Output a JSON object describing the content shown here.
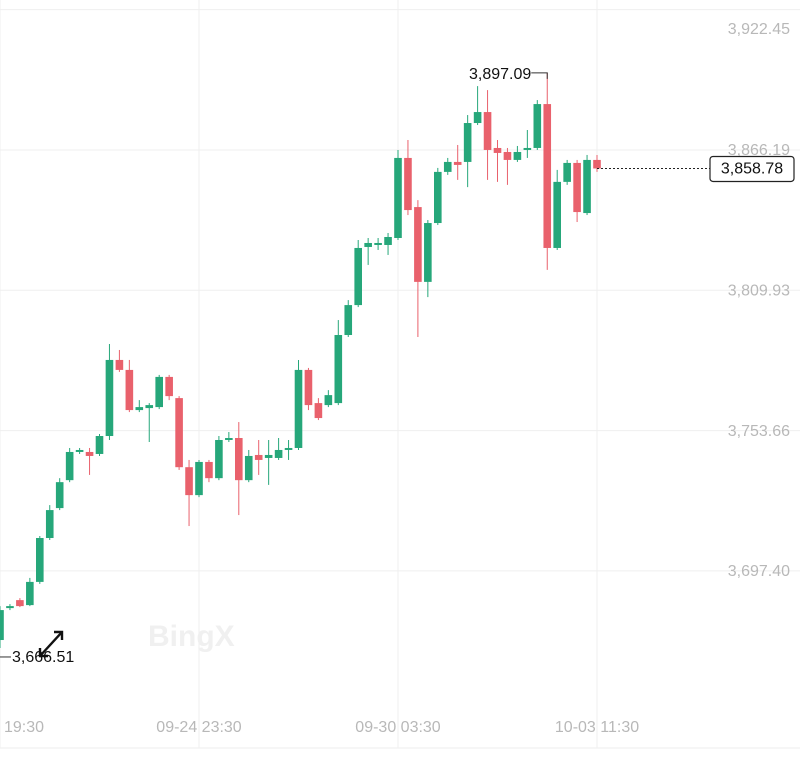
{
  "chart_data": {
    "type": "candlestick",
    "watermark": "BingX",
    "categories": [
      "19:30",
      null,
      null,
      null,
      null,
      null,
      null,
      null,
      null,
      null,
      null,
      null,
      null,
      null,
      null,
      null,
      null,
      null,
      null,
      null,
      "09-24 23:30",
      null,
      null,
      null,
      null,
      null,
      null,
      null,
      null,
      null,
      null,
      null,
      null,
      null,
      null,
      null,
      null,
      null,
      null,
      null,
      "09-30 03:30",
      null,
      null,
      null,
      null,
      null,
      null,
      null,
      null,
      null,
      null,
      null,
      null,
      null,
      null,
      null,
      null,
      null,
      null,
      null,
      "10-03 11:30"
    ],
    "open": [
      3669.7,
      3682.5,
      3685.7,
      3683.7,
      3693.0,
      3710.6,
      3722.6,
      3733.8,
      3745.1,
      3745.1,
      3744.3,
      3751.5,
      3782.0,
      3778.0,
      3761.9,
      3762.7,
      3763.1,
      3775.2,
      3766.7,
      3739.0,
      3727.8,
      3741.1,
      3734.6,
      3749.9,
      3750.7,
      3733.8,
      3743.9,
      3742.7,
      3742.7,
      3745.9,
      3746.7,
      3778.0,
      3764.7,
      3763.9,
      3764.7,
      3792.0,
      3804.0,
      3827.3,
      3828.1,
      3828.1,
      3830.9,
      3863.0,
      3843.3,
      3813.3,
      3836.9,
      3857.4,
      3861.4,
      3861.4,
      3877.0,
      3881.4,
      3867.0,
      3865.4,
      3862.2,
      3866.2,
      3867.0,
      3884.6,
      3826.9,
      3853.4,
      3861.0,
      3840.9,
      3862.2
    ],
    "high": [
      3683.3,
      3684.1,
      3686.5,
      3694.6,
      3711.4,
      3723.8,
      3734.6,
      3746.7,
      3746.7,
      3746.7,
      3752.3,
      3788.4,
      3786.0,
      3782.0,
      3765.9,
      3764.7,
      3776.0,
      3776.0,
      3767.5,
      3741.9,
      3741.9,
      3741.9,
      3751.5,
      3753.1,
      3757.1,
      3745.9,
      3749.9,
      3749.9,
      3750.7,
      3749.9,
      3782.0,
      3778.8,
      3766.7,
      3769.9,
      3798.0,
      3806.0,
      3830.1,
      3830.9,
      3830.9,
      3832.9,
      3866.2,
      3870.2,
      3846.1,
      3838.1,
      3859.0,
      3863.0,
      3868.2,
      3880.2,
      3891.8,
      3890.2,
      3870.2,
      3867.0,
      3867.8,
      3874.2,
      3886.2,
      3897.09,
      3858.2,
      3862.2,
      3862.2,
      3864.2,
      3864.2
    ],
    "low": [
      3666.51,
      3681.7,
      3682.9,
      3683.3,
      3692.2,
      3709.8,
      3721.8,
      3733.0,
      3744.3,
      3735.9,
      3743.5,
      3749.9,
      3777.2,
      3761.1,
      3761.1,
      3749.1,
      3762.3,
      3765.9,
      3737.9,
      3715.4,
      3727.0,
      3733.0,
      3733.8,
      3749.1,
      3719.8,
      3733.0,
      3735.9,
      3731.9,
      3741.9,
      3741.9,
      3745.9,
      3761.9,
      3757.9,
      3763.1,
      3763.9,
      3791.2,
      3803.2,
      3820.1,
      3826.1,
      3824.1,
      3830.1,
      3840.1,
      3791.2,
      3807.2,
      3836.1,
      3856.2,
      3854.2,
      3851.3,
      3876.2,
      3854.2,
      3853.4,
      3852.2,
      3861.4,
      3863.0,
      3866.2,
      3818.1,
      3826.1,
      3852.2,
      3837.3,
      3840.1,
      3857.4
    ],
    "close": [
      3681.7,
      3683.3,
      3683.3,
      3693.0,
      3710.6,
      3721.8,
      3733.0,
      3745.1,
      3745.9,
      3743.5,
      3751.5,
      3782.0,
      3778.0,
      3761.9,
      3763.1,
      3763.9,
      3775.2,
      3767.5,
      3739.0,
      3727.8,
      3741.1,
      3734.6,
      3749.9,
      3750.7,
      3733.8,
      3743.5,
      3741.9,
      3743.9,
      3745.9,
      3746.7,
      3778.0,
      3763.9,
      3758.7,
      3767.9,
      3792.0,
      3804.0,
      3826.9,
      3828.9,
      3828.9,
      3831.3,
      3863.0,
      3842.1,
      3813.3,
      3836.9,
      3857.4,
      3861.4,
      3860.2,
      3877.0,
      3881.4,
      3866.2,
      3865.0,
      3862.2,
      3865.4,
      3867.0,
      3884.6,
      3826.9,
      3853.4,
      3861.0,
      3841.3,
      3862.2,
      3858.78
    ],
    "up_color": "#26a77a",
    "down_color": "#e9616c",
    "ylim": [
      3626.4,
      3926.33
    ],
    "yticks": [
      {
        "value": 3922.45,
        "label": "3,922.45"
      },
      {
        "value": 3866.19,
        "label": "3,866.19"
      },
      {
        "value": 3809.93,
        "label": "3,809.93"
      },
      {
        "value": 3753.66,
        "label": "3,753.66"
      },
      {
        "value": 3697.4,
        "label": "3,697.40"
      }
    ],
    "grid": true,
    "high_label": {
      "value": 3897.09,
      "label": "3,897.09"
    },
    "low_label": {
      "value": 3666.51,
      "label": "3,666.51"
    },
    "last_price": {
      "value": 3858.78,
      "label": "3,858.78"
    }
  }
}
